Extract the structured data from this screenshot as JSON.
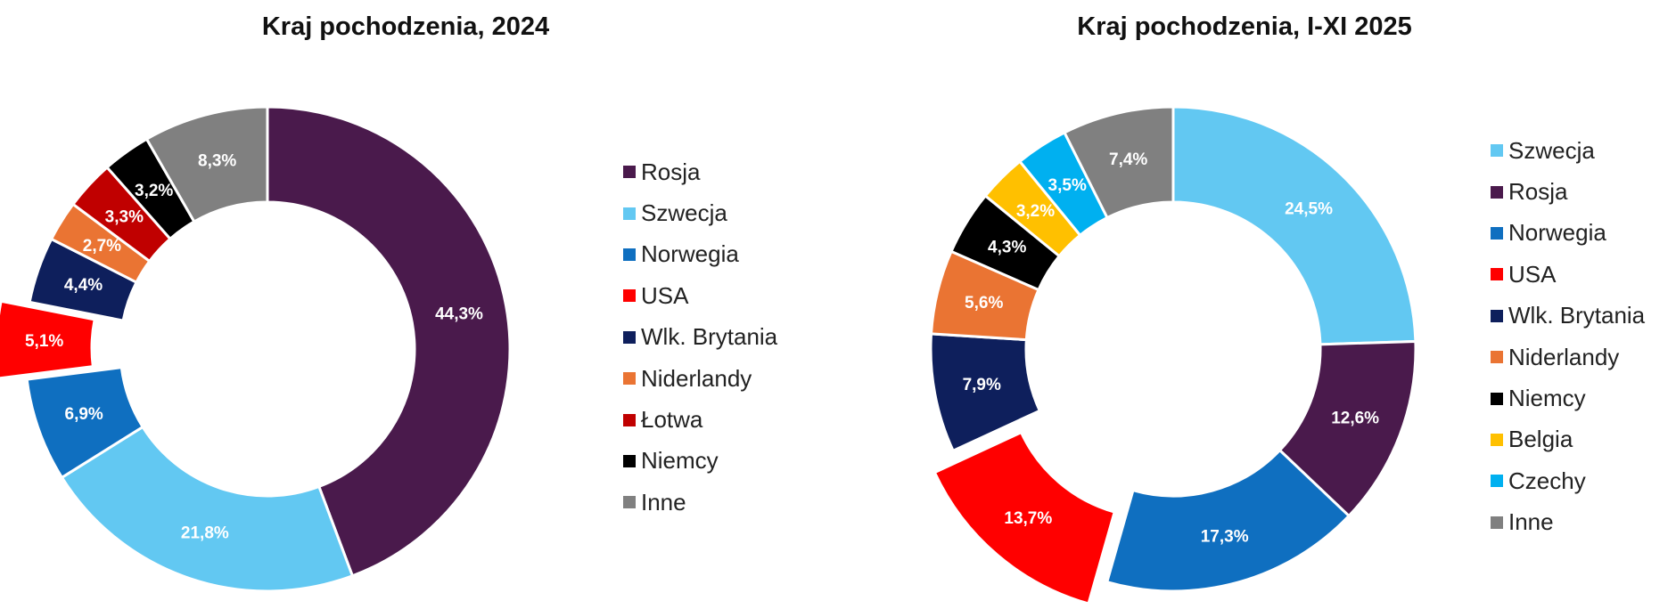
{
  "chart_data": [
    {
      "type": "pie",
      "title": "Kraj pochodzenia, 2024",
      "categories": [
        "Rosja",
        "Szwecja",
        "Norwegia",
        "USA",
        "Wlk. Brytania",
        "Niderlandy",
        "Łotwa",
        "Niemcy",
        "Inne"
      ],
      "values": [
        44.3,
        21.8,
        6.9,
        5.1,
        4.4,
        2.7,
        3.3,
        3.2,
        8.3
      ],
      "labels": [
        "44,3%",
        "21,8%",
        "6,9%",
        "5,1%",
        "4,4%",
        "2,7%",
        "3,3%",
        "3,2%",
        "8,3%"
      ],
      "colors": [
        "#4a1a4c",
        "#62c8f2",
        "#0f6fc0",
        "#ff0000",
        "#0e1f5c",
        "#ea7433",
        "#c00000",
        "#000000",
        "#808080"
      ],
      "exploded": [
        "USA"
      ],
      "legend": "right"
    },
    {
      "type": "pie",
      "title": "Kraj pochodzenia, I-XI 2025",
      "categories": [
        "Szwecja",
        "Rosja",
        "Norwegia",
        "USA",
        "Wlk. Brytania",
        "Niderlandy",
        "Niemcy",
        "Belgia",
        "Czechy",
        "Inne"
      ],
      "values": [
        24.5,
        12.6,
        17.3,
        13.7,
        7.9,
        5.6,
        4.3,
        3.2,
        3.5,
        7.4
      ],
      "labels": [
        "24,5%",
        "12,6%",
        "17,3%",
        "13,7%",
        "7,9%",
        "5,6%",
        "4,3%",
        "3,2%",
        "3,5%",
        "7,4%"
      ],
      "colors": [
        "#62c8f2",
        "#4a1a4c",
        "#0f6fc0",
        "#ff0000",
        "#0e1f5c",
        "#ea7433",
        "#000000",
        "#ffc000",
        "#00b0f0",
        "#808080"
      ],
      "exploded": [
        "USA"
      ],
      "legend": "right"
    }
  ]
}
